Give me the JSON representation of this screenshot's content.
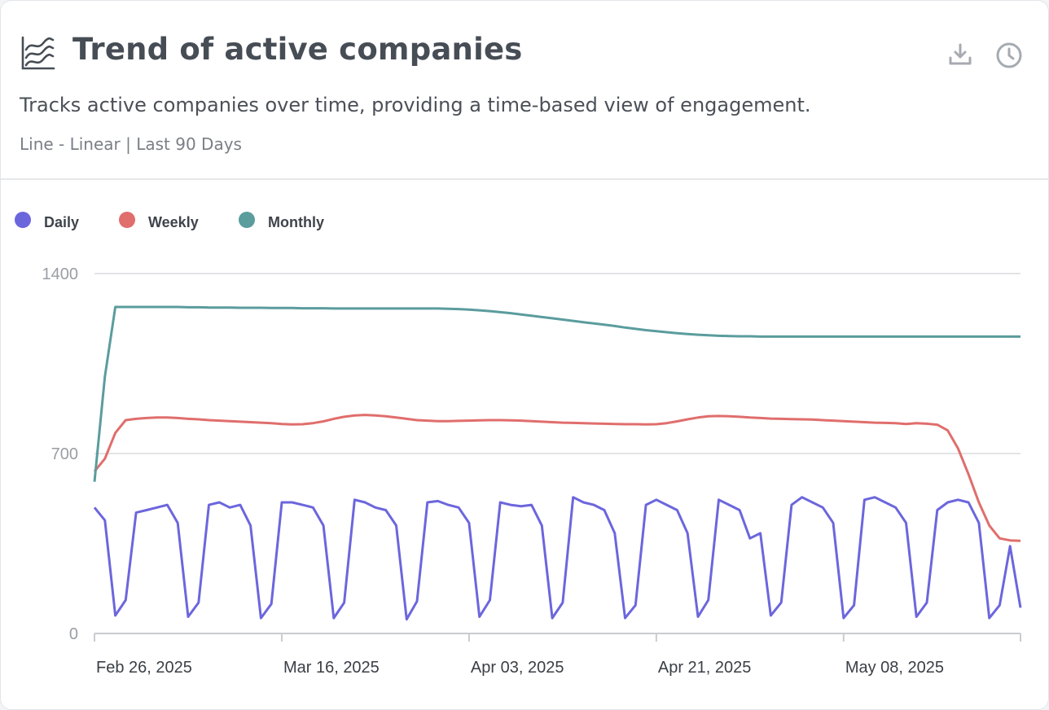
{
  "header": {
    "title": "Trend of active companies",
    "description": "Tracks active companies over time, providing a time-based view of engagement.",
    "subtitle": "Line - Linear | Last 90 Days"
  },
  "chart_data": {
    "type": "line",
    "categories": [
      "Feb 26, 2025",
      null,
      null,
      null,
      null,
      null,
      null,
      null,
      null,
      null,
      null,
      null,
      null,
      null,
      null,
      null,
      null,
      null,
      "Mar 16, 2025",
      null,
      null,
      null,
      null,
      null,
      null,
      null,
      null,
      null,
      null,
      null,
      null,
      null,
      null,
      null,
      null,
      null,
      "Apr 03, 2025",
      null,
      null,
      null,
      null,
      null,
      null,
      null,
      null,
      null,
      null,
      null,
      null,
      null,
      null,
      null,
      null,
      null,
      "Apr 21, 2025",
      null,
      null,
      null,
      null,
      null,
      null,
      null,
      null,
      null,
      null,
      null,
      null,
      null,
      null,
      null,
      null,
      null,
      "May 08, 2025",
      null,
      null,
      null,
      null,
      null,
      null,
      null,
      null,
      null,
      null,
      null,
      null,
      null,
      null,
      null,
      null,
      null
    ],
    "series": [
      {
        "name": "Daily",
        "color": "#6c66dd",
        "values": [
          490,
          440,
          70,
          130,
          470,
          480,
          490,
          500,
          430,
          65,
          120,
          500,
          510,
          490,
          500,
          420,
          60,
          115,
          510,
          510,
          500,
          490,
          420,
          60,
          120,
          520,
          510,
          490,
          480,
          420,
          55,
          125,
          510,
          515,
          500,
          490,
          430,
          65,
          130,
          510,
          500,
          495,
          500,
          420,
          60,
          120,
          530,
          510,
          500,
          480,
          390,
          60,
          110,
          500,
          520,
          500,
          480,
          390,
          65,
          130,
          520,
          500,
          480,
          370,
          390,
          70,
          120,
          500,
          530,
          510,
          490,
          430,
          60,
          110,
          520,
          530,
          510,
          490,
          430,
          65,
          120,
          480,
          510,
          520,
          510,
          430,
          60,
          110,
          340,
          100
        ]
      },
      {
        "name": "Weekly",
        "color": "#e06e6c",
        "values": [
          630,
          680,
          780,
          830,
          835,
          838,
          840,
          840,
          838,
          835,
          833,
          830,
          828,
          826,
          824,
          822,
          820,
          818,
          815,
          813,
          814,
          818,
          825,
          835,
          843,
          848,
          850,
          848,
          845,
          840,
          835,
          830,
          828,
          826,
          826,
          827,
          828,
          829,
          830,
          830,
          829,
          828,
          826,
          824,
          822,
          820,
          819,
          818,
          817,
          816,
          815,
          814,
          814,
          813,
          814,
          818,
          825,
          833,
          840,
          845,
          846,
          845,
          843,
          840,
          838,
          836,
          835,
          834,
          833,
          832,
          830,
          828,
          826,
          824,
          822,
          820,
          819,
          818,
          815,
          818,
          816,
          812,
          790,
          720,
          620,
          510,
          420,
          370,
          362,
          360
        ]
      },
      {
        "name": "Monthly",
        "color": "#5b9c9d",
        "values": [
          590,
          1000,
          1270,
          1270,
          1270,
          1270,
          1270,
          1270,
          1270,
          1269,
          1269,
          1268,
          1268,
          1268,
          1267,
          1267,
          1267,
          1266,
          1266,
          1266,
          1265,
          1265,
          1265,
          1264,
          1264,
          1264,
          1264,
          1264,
          1264,
          1264,
          1264,
          1264,
          1264,
          1264,
          1263,
          1262,
          1260,
          1257,
          1254,
          1250,
          1246,
          1241,
          1236,
          1231,
          1226,
          1221,
          1216,
          1211,
          1206,
          1201,
          1196,
          1190,
          1185,
          1180,
          1176,
          1172,
          1168,
          1165,
          1162,
          1160,
          1158,
          1157,
          1156,
          1156,
          1155,
          1155,
          1155,
          1155,
          1155,
          1155,
          1155,
          1155,
          1155,
          1155,
          1155,
          1155,
          1155,
          1155,
          1155,
          1155,
          1155,
          1155,
          1155,
          1155,
          1155,
          1155,
          1155,
          1155,
          1155,
          1155
        ]
      }
    ],
    "ylim": [
      0,
      1400
    ],
    "yticks": [
      0,
      700,
      1400
    ],
    "grid": true,
    "legend": "top-left"
  }
}
